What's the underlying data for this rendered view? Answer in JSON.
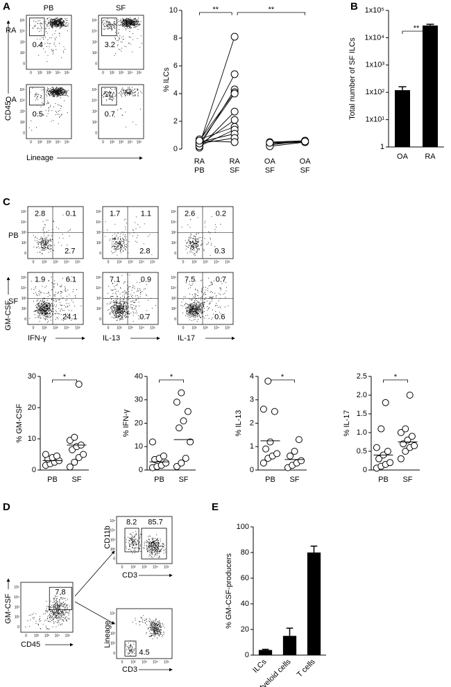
{
  "panel_labels": [
    "A",
    "B",
    "C",
    "D",
    "E"
  ],
  "flow_ticks": [
    "0",
    "10²",
    "10³",
    "10⁴",
    "10⁵"
  ],
  "flow_a": {
    "columns": [
      "PB",
      "SF"
    ],
    "rows": [
      "RA",
      "OA"
    ],
    "gates": [
      [
        "0.4",
        "3.2"
      ],
      [
        "0.5",
        "0.7"
      ]
    ],
    "y_label": "CD45",
    "x_label": "Lineage"
  },
  "flow_c": {
    "rows": [
      "PB",
      "SF"
    ],
    "columns": [
      "IFN-γ",
      "IL-13",
      "IL-17"
    ],
    "y_label": "GM-CSF",
    "quadrants": [
      [
        [
          "2.8",
          "0.1",
          "2.7"
        ],
        [
          "1.7",
          "1.1",
          "2.8"
        ],
        [
          "2.6",
          "0.2",
          "0.3"
        ]
      ],
      [
        [
          "1.9",
          "6.1",
          "24.1"
        ],
        [
          "7.1",
          "0.9",
          "0.7"
        ],
        [
          "7.5",
          "0.7",
          "0.6"
        ]
      ]
    ]
  },
  "flow_d": {
    "main": {
      "gate": "7.8",
      "y_label": "GM-CSF",
      "x_label": "CD45"
    },
    "upper": {
      "gates": [
        "8.2",
        "85.7"
      ],
      "y_label": "CD11b",
      "x_label": "CD3"
    },
    "lower": {
      "gate": "4.5",
      "y_label": "Lineage",
      "x_label": "CD3"
    }
  },
  "chart_data": [
    {
      "type": "paired",
      "y_label": "% ILCs",
      "categories": [
        [
          "RA",
          "PB"
        ],
        [
          "RA",
          "SF"
        ],
        [
          "OA",
          "SF"
        ],
        [
          "OA",
          "SF"
        ]
      ],
      "ylim": [
        0,
        10
      ],
      "yticks": [
        0,
        2,
        4,
        6,
        8,
        10
      ],
      "pairs": [
        [
          0.3,
          8.1,
          null,
          null
        ],
        [
          0.5,
          5.4,
          null,
          null
        ],
        [
          0.2,
          4.3,
          null,
          null
        ],
        [
          0.6,
          4.1,
          null,
          null
        ],
        [
          0.4,
          4.0,
          null,
          null
        ],
        [
          0.1,
          2.7,
          null,
          null
        ],
        [
          0.3,
          2.1,
          null,
          null
        ],
        [
          0.7,
          1.6,
          null,
          null
        ],
        [
          0.2,
          1.4,
          null,
          null
        ],
        [
          0.5,
          1.1,
          null,
          null
        ],
        [
          0.4,
          0.8,
          null,
          null
        ],
        [
          0.6,
          0.5,
          null,
          null
        ],
        [
          null,
          null,
          0.5,
          0.6
        ],
        [
          null,
          null,
          0.4,
          0.5
        ],
        [
          null,
          null,
          0.3,
          0.6
        ],
        [
          null,
          null,
          0.2,
          0.5
        ],
        [
          null,
          null,
          0.45,
          0.55
        ]
      ],
      "annotations": [
        "**",
        "**"
      ]
    },
    {
      "type": "bar",
      "y_label": "Total number of SF ILCs",
      "categories": [
        "OA",
        "RA"
      ],
      "values": [
        120,
        28000
      ],
      "errors": [
        40,
        3000
      ],
      "color": "#000000",
      "log": true,
      "ylim": [
        1,
        100000
      ],
      "yticks": [
        1,
        {
          "value": 10,
          "label": "1x10¹"
        },
        {
          "value": 100,
          "label": "1x10²"
        },
        {
          "value": 1000,
          "label": "1x10³"
        },
        {
          "value": 10000,
          "label": "1x10⁴"
        },
        {
          "value": 100000,
          "label": "1x10⁵"
        }
      ],
      "annotations": [
        "**"
      ]
    },
    {
      "type": "strip",
      "y_label": "% GM-CSF",
      "categories": [
        "PB",
        "SF"
      ],
      "values": [
        [
          1.5,
          2,
          2.5,
          3,
          3.5,
          4,
          4.5,
          5
        ],
        [
          1,
          2.5,
          4,
          5,
          6.5,
          7.5,
          8,
          9.5,
          10.5,
          27.5
        ]
      ],
      "means": [
        3,
        8
      ],
      "ylim": [
        0,
        30
      ],
      "yticks": [
        0,
        10,
        20,
        30
      ],
      "annotations": [
        "*"
      ]
    },
    {
      "type": "strip",
      "y_label": "% IFN-γ",
      "categories": [
        "PB",
        "SF"
      ],
      "values": [
        [
          1,
          1.5,
          2,
          3,
          4.5,
          5,
          6,
          12
        ],
        [
          1.5,
          3,
          5,
          12,
          18,
          21,
          25,
          29,
          33
        ]
      ],
      "means": [
        3.5,
        13
      ],
      "ylim": [
        0,
        40
      ],
      "yticks": [
        0,
        10,
        20,
        30,
        40
      ],
      "annotations": [
        "*"
      ]
    },
    {
      "type": "strip",
      "y_label": "% IL-13",
      "categories": [
        "PB",
        "SF"
      ],
      "values": [
        [
          0.3,
          0.5,
          0.6,
          0.7,
          0.9,
          1.2,
          2.5,
          2.6,
          3.8
        ],
        [
          0.1,
          0.2,
          0.3,
          0.4,
          0.6,
          0.8,
          1.3
        ]
      ],
      "means": [
        1.25,
        0.45
      ],
      "ylim": [
        0,
        4
      ],
      "yticks": [
        0,
        1,
        2,
        3,
        4
      ],
      "annotations": [
        "*"
      ]
    },
    {
      "type": "strip",
      "y_label": "% IL-17",
      "categories": [
        "PB",
        "SF"
      ],
      "values": [
        [
          0.05,
          0.1,
          0.15,
          0.2,
          0.3,
          0.4,
          0.5,
          0.6,
          1.1,
          1.8
        ],
        [
          0.3,
          0.5,
          0.6,
          0.65,
          0.7,
          0.8,
          0.9,
          1.0,
          1.1,
          2.0
        ]
      ],
      "means": [
        0.4,
        0.75
      ],
      "ylim": [
        0,
        2.5
      ],
      "yticks": [
        0,
        0.5,
        {
          "value": 1,
          "label": "1.0"
        },
        1.5,
        {
          "value": 2,
          "label": "2.0"
        },
        2.5
      ],
      "annotations": [
        "*"
      ]
    },
    {
      "type": "bar",
      "y_label": "% GM-CSF-producers",
      "categories": [
        "ILCs",
        "Myeloid cells",
        "T cells"
      ],
      "values": [
        4,
        15,
        80
      ],
      "errors": [
        0.5,
        6,
        5
      ],
      "color": "#000000",
      "ylim": [
        0,
        100
      ],
      "yticks": [
        0,
        20,
        40,
        60,
        80,
        100
      ]
    }
  ]
}
